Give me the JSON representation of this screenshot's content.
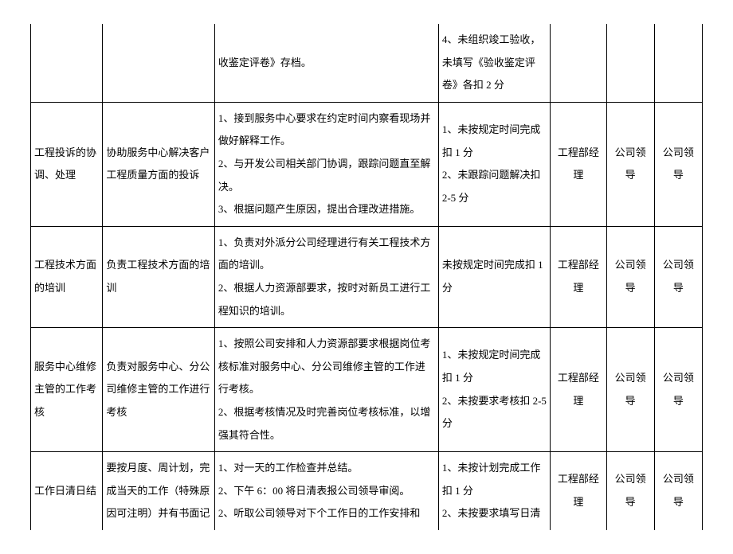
{
  "rows": [
    {
      "c1": "",
      "c2": "",
      "c3": "收鉴定评卷》存档。",
      "c4": "4、未组织竣工验收，未填写《验收鉴定评卷》各扣 2 分",
      "c5": "",
      "c6": "",
      "c7": ""
    },
    {
      "c1": "工程投诉的协调、处理",
      "c2": "协助服务中心解决客户工程质量方面的投诉",
      "c3": "1、接到服务中心要求在约定时间内察看现场并做好解释工作。\n2、与开发公司相关部门协调，跟踪问题直至解决。\n3、根据问题产生原因，提出合理改进措施。",
      "c4": "1、未按规定时间完成扣 1 分\n2、未跟踪问题解决扣 2-5 分",
      "c5": "工程部经理",
      "c6": "公司领导",
      "c7": "公司领导"
    },
    {
      "c1": "工程技术方面的培训",
      "c2": "负责工程技术方面的培训",
      "c3": "1、负责对外派分公司经理进行有关工程技术方面的培训。\n2、根据人力资源部要求，按时对新员工进行工程知识的培训。",
      "c4": "未按规定时间完成扣 1 分",
      "c5": "工程部经理",
      "c6": "公司领导",
      "c7": "公司领导"
    },
    {
      "c1": "服务中心维修主管的工作考核",
      "c2": "负责对服务中心、分公司维修主管的工作进行考核",
      "c3": "1、按照公司安排和人力资源部要求根据岗位考核标准对服务中心、分公司维修主管的工作进行考核。\n2、根据考核情况及时完善岗位考核标准，以增强其符合性。",
      "c4": "1、未按规定时间完成扣 1 分\n2、未按要求考核扣 2-5 分",
      "c5": "工程部经理",
      "c6": "公司领导",
      "c7": "公司领导"
    },
    {
      "c1": "工作日清日结",
      "c2": "要按月度、周计划，完成当天的工作（特殊原因可注明）并有书面记",
      "c3": "1、对一天的工作检查并总结。\n2、下午 6：00 将日清表报公司领导审阅。\n2、听取公司领导对下个工作日的工作安排和",
      "c4": "1、未按计划完成工作扣 1 分\n2、未按要求填写日清",
      "c5": "工程部经理",
      "c6": "公司领导",
      "c7": "公司领导"
    }
  ]
}
